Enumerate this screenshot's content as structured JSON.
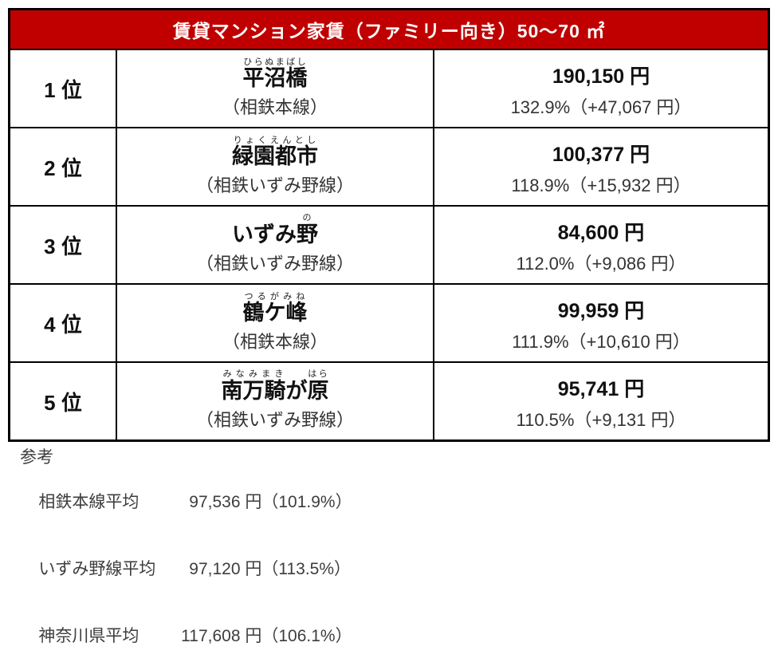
{
  "table": {
    "title": "賃貸マンション家賃（ファミリー向き）50～70 ㎡",
    "rows": [
      {
        "rank": "1 位",
        "station": "平沼橋",
        "furigana": "ひらぬまばし",
        "station_parts": [
          {
            "text": "平沼橋",
            "ruby": "ひらぬまばし"
          }
        ],
        "line": "（相鉄本線）",
        "rent": "190,150 円",
        "ratio": "132.9%（+47,067 円）"
      },
      {
        "rank": "2 位",
        "station": "緑園都市",
        "furigana": "りょくえんとし",
        "station_parts": [
          {
            "text": "緑園都市",
            "ruby": "りょくえんとし"
          }
        ],
        "line": "（相鉄いずみ野線）",
        "rent": "100,377 円",
        "ratio": "118.9%（+15,932 円）"
      },
      {
        "rank": "3 位",
        "station": "いずみ野",
        "furigana": "の",
        "station_parts": [
          {
            "text": "いずみ",
            "ruby": ""
          },
          {
            "text": "野",
            "ruby": "の"
          }
        ],
        "line": "（相鉄いずみ野線）",
        "rent": "84,600 円",
        "ratio": "112.0%（+9,086 円）"
      },
      {
        "rank": "4 位",
        "station": "鶴ケ峰",
        "furigana": "つるがみね",
        "station_parts": [
          {
            "text": "鶴ケ峰",
            "ruby": "つるがみね"
          }
        ],
        "line": "（相鉄本線）",
        "rent": "99,959 円",
        "ratio": "111.9%（+10,610 円）"
      },
      {
        "rank": "5 位",
        "station": "南万騎が原",
        "furigana": "みなみまき・はら",
        "station_parts": [
          {
            "text": "南万騎",
            "ruby": "みなみまき"
          },
          {
            "text": "が",
            "ruby": ""
          },
          {
            "text": "原",
            "ruby": "はら"
          }
        ],
        "line": "（相鉄いずみ野線）",
        "rent": "95,741 円",
        "ratio": "110.5%（+9,131 円）"
      }
    ]
  },
  "reference": {
    "title": "参考",
    "rows": [
      {
        "label": "相鉄本線平均",
        "amount": "97,536 円",
        "percent": "（101.9%）"
      },
      {
        "label": "いずみ野線平均",
        "amount": "97,120 円",
        "percent": "（113.5%）"
      },
      {
        "label": "神奈川県平均",
        "amount": "117,608 円",
        "percent": "（106.1%）"
      }
    ]
  },
  "colors": {
    "header_bg": "#C00000",
    "header_text": "#FFFFFF",
    "border": "#000000",
    "body_text": "#111111",
    "secondary_text": "#333333"
  }
}
